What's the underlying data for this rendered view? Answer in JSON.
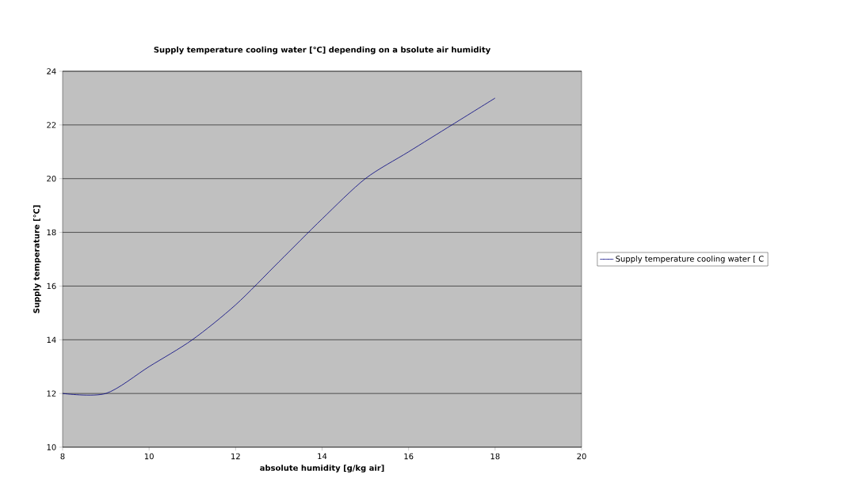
{
  "chart_data": {
    "type": "line",
    "title": "Supply temperature cooling water [℃] depending on a bsolute air humidity",
    "xlabel": "absolute humidity [g/kg air]",
    "ylabel": "Supply temperature [℃]",
    "x": [
      8,
      9,
      10,
      11,
      12,
      13,
      14,
      15,
      16,
      17,
      18
    ],
    "series": [
      {
        "name": "Supply temperature cooling water [ C",
        "color": "#000080",
        "values": [
          12,
          12,
          13,
          14,
          15.3,
          16.9,
          18.5,
          20,
          21,
          22,
          23
        ]
      }
    ],
    "xlim": [
      8,
      20
    ],
    "xticks": [
      8,
      10,
      12,
      14,
      16,
      18,
      20
    ],
    "ylim": [
      10,
      24
    ],
    "yticks": [
      10,
      12,
      14,
      16,
      18,
      20,
      22,
      24
    ],
    "grid": "y",
    "legend": "right",
    "marker": "none",
    "line_style": "solid"
  }
}
